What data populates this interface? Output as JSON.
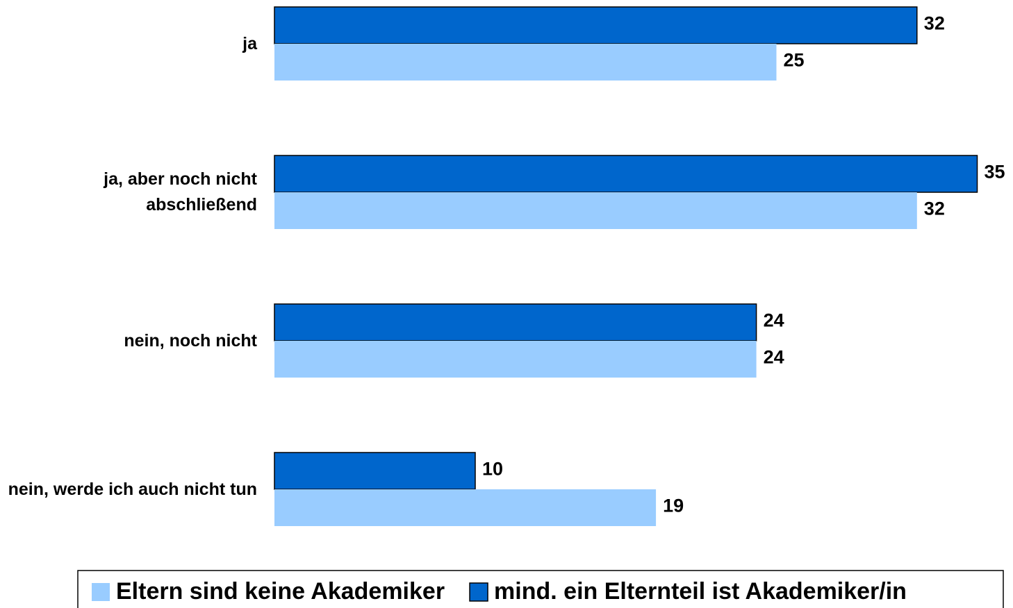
{
  "chart_data": {
    "type": "hbar",
    "categories": [
      "ja",
      "ja, aber noch nicht abschließend",
      "nein, noch nicht",
      "nein, werde ich auch nicht tun"
    ],
    "series": [
      {
        "name": "Eltern sind keine Akademiker",
        "color": "#99ccff",
        "values": [
          25,
          32,
          24,
          19
        ]
      },
      {
        "name": "mind. ein Elternteil ist Akademiker/in",
        "color": "#0066cc",
        "values": [
          32,
          35,
          24,
          10
        ]
      }
    ],
    "legend": "bottom"
  }
}
